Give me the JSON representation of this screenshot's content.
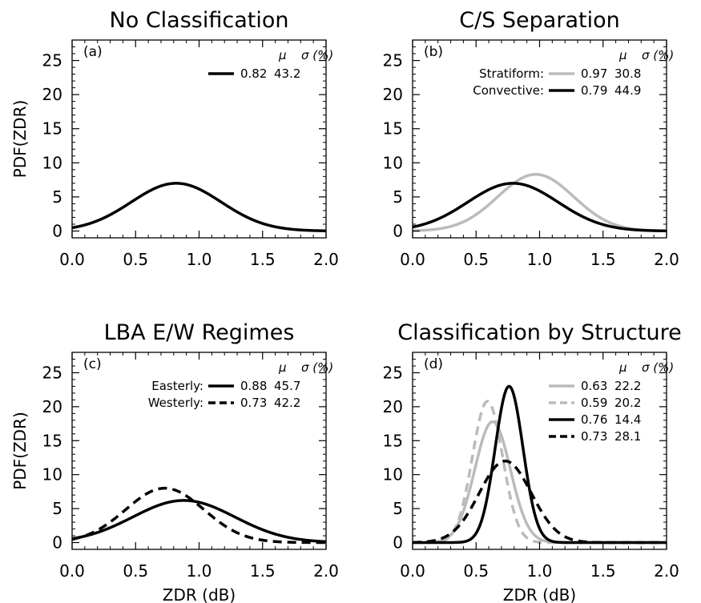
{
  "chart_data": [
    {
      "type": "line",
      "panel": "(a)",
      "title": "No Classification",
      "xlabel": "",
      "ylabel": "PDF(ZDR)",
      "xlim": [
        0,
        2
      ],
      "ylim": [
        -1,
        28
      ],
      "x_ticks": [
        "0.0",
        "0.5",
        "1.0",
        "1.5",
        "2.0"
      ],
      "y_ticks": [
        "0",
        "5",
        "10",
        "15",
        "20",
        "25"
      ],
      "legend_header": [
        "μ",
        "σ (%)"
      ],
      "series": [
        {
          "label": "",
          "mu": 0.82,
          "sigma_pct": 43.2,
          "mu_text": "0.82",
          "sigma_text": "43.2",
          "color": "#000000",
          "dash": "solid",
          "peak": 7.0
        }
      ]
    },
    {
      "type": "line",
      "panel": "(b)",
      "title": "C/S Separation",
      "xlabel": "",
      "ylabel": "",
      "xlim": [
        0,
        2
      ],
      "ylim": [
        -1,
        28
      ],
      "x_ticks": [
        "0.0",
        "0.5",
        "1.0",
        "1.5",
        "2.0"
      ],
      "y_ticks": [
        "0",
        "5",
        "10",
        "15",
        "20",
        "25"
      ],
      "legend_header": [
        "μ",
        "σ (%)"
      ],
      "series": [
        {
          "label": "Stratiform:",
          "mu": 0.97,
          "sigma_pct": 30.8,
          "mu_text": "0.97",
          "sigma_text": "30.8",
          "color": "#bbbbbb",
          "dash": "solid",
          "peak": 8.3
        },
        {
          "label": "Convective:",
          "mu": 0.79,
          "sigma_pct": 44.9,
          "mu_text": "0.79",
          "sigma_text": "44.9",
          "color": "#000000",
          "dash": "solid",
          "peak": 7.0
        }
      ]
    },
    {
      "type": "line",
      "panel": "(c)",
      "title": "LBA E/W Regimes",
      "xlabel": "ZDR (dB)",
      "ylabel": "PDF(ZDR)",
      "xlim": [
        0,
        2
      ],
      "ylim": [
        -1,
        28
      ],
      "x_ticks": [
        "0.0",
        "0.5",
        "1.0",
        "1.5",
        "2.0"
      ],
      "y_ticks": [
        "0",
        "5",
        "10",
        "15",
        "20",
        "25"
      ],
      "legend_header": [
        "μ",
        "σ (%)"
      ],
      "series": [
        {
          "label": "Easterly:",
          "mu": 0.88,
          "sigma_pct": 45.7,
          "mu_text": "0.88",
          "sigma_text": "45.7",
          "color": "#000000",
          "dash": "solid",
          "peak": 6.2
        },
        {
          "label": "Westerly:",
          "mu": 0.73,
          "sigma_pct": 42.2,
          "mu_text": "0.73",
          "sigma_text": "42.2",
          "color": "#000000",
          "dash": "dashed",
          "peak": 8.0
        }
      ]
    },
    {
      "type": "line",
      "panel": "(d)",
      "title": "Classification by Structure",
      "xlabel": "ZDR (dB)",
      "ylabel": "",
      "xlim": [
        0,
        2
      ],
      "ylim": [
        -1,
        28
      ],
      "x_ticks": [
        "0.0",
        "0.5",
        "1.0",
        "1.5",
        "2.0"
      ],
      "y_ticks": [
        "0",
        "5",
        "10",
        "15",
        "20",
        "25"
      ],
      "legend_header": [
        "μ",
        "σ (%)"
      ],
      "series": [
        {
          "label": "",
          "mu": 0.63,
          "sigma_pct": 22.2,
          "mu_text": "0.63",
          "sigma_text": "22.2",
          "color": "#bbbbbb",
          "dash": "solid",
          "peak": 17.8
        },
        {
          "label": "",
          "mu": 0.59,
          "sigma_pct": 20.2,
          "mu_text": "0.59",
          "sigma_text": "20.2",
          "color": "#bbbbbb",
          "dash": "dashed",
          "peak": 20.8
        },
        {
          "label": "",
          "mu": 0.76,
          "sigma_pct": 14.4,
          "mu_text": "0.76",
          "sigma_text": "14.4",
          "color": "#000000",
          "dash": "solid",
          "peak": 23.0
        },
        {
          "label": "",
          "mu": 0.73,
          "sigma_pct": 28.1,
          "mu_text": "0.73",
          "sigma_text": "28.1",
          "color": "#000000",
          "dash": "dashed",
          "peak": 12.0
        }
      ]
    }
  ]
}
